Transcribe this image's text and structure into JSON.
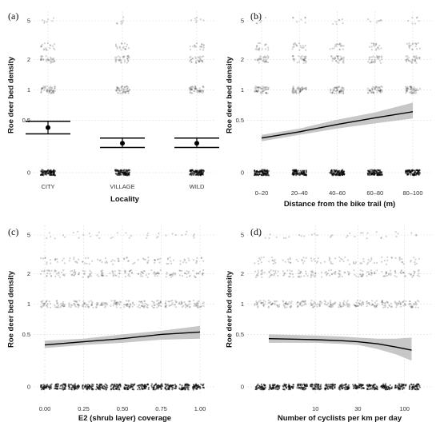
{
  "chart_data": [
    {
      "type": "scatter",
      "panel_label": "(a)",
      "xlabel": "Locality",
      "ylabel": "Roe deer bed density",
      "x_scale": "categorical",
      "categories": [
        "CITY",
        "VILLAGE",
        "WILD"
      ],
      "y_ticks": [
        "0",
        "0.5",
        "1",
        "2",
        "5"
      ],
      "y_tick_values": [
        0,
        0.5,
        1,
        2,
        5
      ],
      "y_scale": "pseudo-log",
      "grid": true,
      "estimates": [
        {
          "category": "CITY",
          "mean": 0.43,
          "lower": 0.37,
          "upper": 0.49
        },
        {
          "category": "VILLAGE",
          "mean": 0.28,
          "lower": 0.24,
          "upper": 0.33
        },
        {
          "category": "WILD",
          "mean": 0.28,
          "lower": 0.24,
          "upper": 0.33
        }
      ],
      "observed_levels": [
        0,
        1,
        2,
        3,
        5
      ]
    },
    {
      "type": "line",
      "panel_label": "(b)",
      "xlabel": "Distance from the bike trail (m)",
      "ylabel": "Roe deer bed density",
      "x_scale": "categorical",
      "categories": [
        "0–20",
        "20–40",
        "40–60",
        "60–80",
        "80–100"
      ],
      "y_ticks": [
        "0",
        "0.5",
        "1",
        "2",
        "5"
      ],
      "y_tick_values": [
        0,
        0.5,
        1,
        2,
        5
      ],
      "y_scale": "pseudo-log",
      "grid": true,
      "fit": {
        "x": [
          1,
          2,
          3,
          4,
          5
        ],
        "y": [
          0.33,
          0.39,
          0.46,
          0.54,
          0.64
        ],
        "lower": [
          0.3,
          0.36,
          0.42,
          0.47,
          0.53
        ],
        "upper": [
          0.36,
          0.42,
          0.51,
          0.63,
          0.79
        ]
      },
      "observed_levels": [
        0,
        1,
        2,
        3,
        5
      ]
    },
    {
      "type": "line",
      "panel_label": "(c)",
      "xlabel": "E2 (shrub layer) coverage",
      "ylabel": "Roe deer bed density",
      "x_scale": "linear",
      "x_ticks": [
        "0.00",
        "0.25",
        "0.50",
        "0.75",
        "1.00"
      ],
      "x_tick_values": [
        0,
        0.25,
        0.5,
        0.75,
        1
      ],
      "y_ticks": [
        "0",
        "0.5",
        "1",
        "2",
        "5"
      ],
      "y_tick_values": [
        0,
        0.5,
        1,
        2,
        5
      ],
      "y_scale": "pseudo-log",
      "grid": true,
      "fit": {
        "x": [
          0,
          0.25,
          0.5,
          0.75,
          1
        ],
        "y": [
          0.4,
          0.43,
          0.46,
          0.5,
          0.54
        ],
        "lower": [
          0.37,
          0.4,
          0.42,
          0.45,
          0.46
        ],
        "upper": [
          0.44,
          0.46,
          0.5,
          0.56,
          0.64
        ]
      },
      "observed_levels": [
        0,
        1,
        2,
        3,
        5
      ]
    },
    {
      "type": "line",
      "panel_label": "(d)",
      "xlabel": "Number of cyclists per km per day",
      "ylabel": "Roe deer bed density",
      "x_scale": "log",
      "x_ticks": [
        "10",
        "30",
        "100"
      ],
      "x_tick_values": [
        10,
        30,
        100
      ],
      "y_ticks": [
        "0",
        "0.5",
        "1",
        "2",
        "5"
      ],
      "y_tick_values": [
        0,
        0.5,
        1,
        2,
        5
      ],
      "y_scale": "pseudo-log",
      "grid": true,
      "fit": {
        "x": [
          3,
          10,
          20,
          30,
          50,
          80,
          120
        ],
        "y": [
          0.46,
          0.45,
          0.44,
          0.43,
          0.41,
          0.38,
          0.35
        ],
        "lower": [
          0.42,
          0.42,
          0.41,
          0.4,
          0.36,
          0.31,
          0.25
        ],
        "upper": [
          0.5,
          0.49,
          0.48,
          0.47,
          0.46,
          0.46,
          0.47
        ]
      },
      "observed_levels": [
        0,
        1,
        2,
        3,
        5
      ]
    }
  ],
  "colors": {
    "points": "#000000",
    "line": "#000000",
    "ribbon": "#bdbdbd",
    "grid": "#dddddd"
  }
}
